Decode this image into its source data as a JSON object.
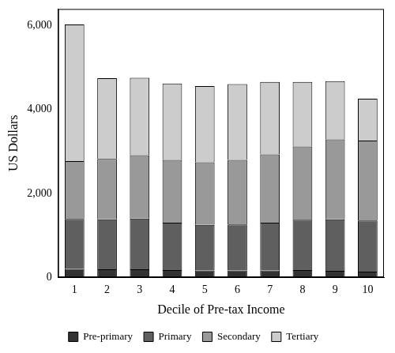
{
  "chart_data": {
    "type": "bar",
    "stacked": true,
    "x_label": "Decile of Pre-tax Income",
    "y_label": "US Dollars",
    "categories": [
      "1",
      "2",
      "3",
      "4",
      "5",
      "6",
      "7",
      "8",
      "9",
      "10"
    ],
    "series": [
      {
        "name": "Pre-primary",
        "color": "#333333",
        "values": [
          200,
          190,
          190,
          170,
          160,
          160,
          160,
          170,
          150,
          130
        ]
      },
      {
        "name": "Primary",
        "color": "#5f5f5f",
        "values": [
          1190,
          1190,
          1210,
          1130,
          1090,
          1100,
          1140,
          1200,
          1230,
          1220
        ]
      },
      {
        "name": "Secondary",
        "color": "#999999",
        "values": [
          1380,
          1440,
          1510,
          1500,
          1490,
          1540,
          1630,
          1750,
          1910,
          1910
        ]
      },
      {
        "name": "Tertiary",
        "color": "#cccccc",
        "values": [
          3260,
          1930,
          1850,
          1820,
          1820,
          1810,
          1730,
          1540,
          1390,
          1000
        ]
      }
    ],
    "ylim": [
      0,
      6400
    ],
    "yticks": [
      0,
      {
        "value": 2000,
        "label": "2,000"
      },
      {
        "value": 4000,
        "label": "4,000"
      },
      {
        "value": 6000,
        "label": "6,000"
      }
    ],
    "grid": false,
    "legend": "bottom"
  }
}
